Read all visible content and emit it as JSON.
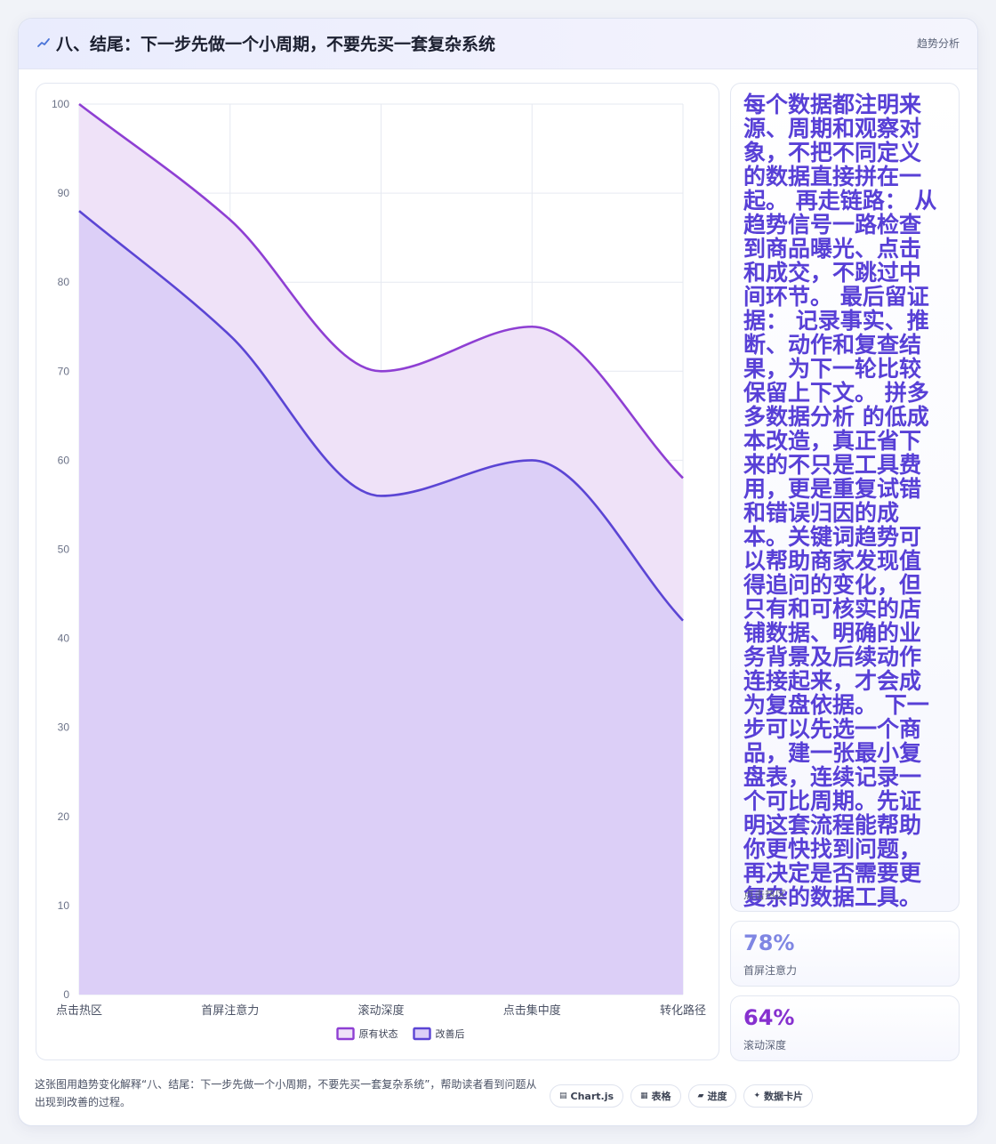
{
  "header": {
    "title": "八、结尾：下一步先做一个小周期，不要先买一套复杂系统",
    "tag": "趋势分析",
    "icon": "trend-line-icon"
  },
  "chart_data": {
    "type": "area",
    "categories": [
      "点击热区",
      "首屏注意力",
      "滚动深度",
      "点击集中度",
      "转化路径"
    ],
    "series": [
      {
        "name": "原有状态",
        "values": [
          100,
          87,
          70,
          75,
          58
        ],
        "color": "#8e3fd3",
        "fill": "#efe2f8"
      },
      {
        "name": "改善后",
        "values": [
          88,
          74,
          56,
          60,
          42
        ],
        "color": "#5b45d4",
        "fill": "#dccff7"
      }
    ],
    "ylim": [
      0,
      100
    ],
    "yticks": [
      0,
      10,
      20,
      30,
      40,
      50,
      60,
      70,
      80,
      90,
      100
    ],
    "grid": true,
    "legend": "bottom"
  },
  "side": {
    "note": {
      "text": "每个数据都注明来源、周期和观察对象，不把不同定义的数据直接拼在一起。 再走链路： 从趋势信号一路检查到商品曝光、点击和成交，不跳过中间环节。 最后留证据： 记录事实、推断、动作和复查结果，为下一轮比较保留上下文。 拼多多数据分析 的低成本改造，真正省下来的不只是工具费用，更是重复试错和错误归因的成本。关键词趋势可以帮助商家发现值得追问的变化，但只有和可核实的店铺数据、明确的业务背景及后续动作连接起来，才会成为复盘依据。 下一步可以先选一个商品，建一张最小复盘表，连续记录一个可比周期。先证明这套流程能帮助你更快找到问题，再决定是否需要更复杂的数据工具。",
      "label": "点击热区"
    },
    "stat1": {
      "value": "78%",
      "label": "首屏注意力",
      "color": "#7f86e3"
    },
    "stat2": {
      "value": "64%",
      "label": "滚动深度",
      "color": "#8630cf"
    }
  },
  "footer": {
    "text": "这张图用趋势变化解释“八、结尾：下一步先做一个小周期，不要先买一套复杂系统”，帮助读者看到问题从出现到改善的过程。",
    "chips": [
      {
        "label": "Chart.js",
        "icon": "chart-icon"
      },
      {
        "label": "表格",
        "icon": "table-icon"
      },
      {
        "label": "进度",
        "icon": "progress-icon"
      },
      {
        "label": "数据卡片",
        "icon": "sparkle-icon"
      }
    ]
  }
}
